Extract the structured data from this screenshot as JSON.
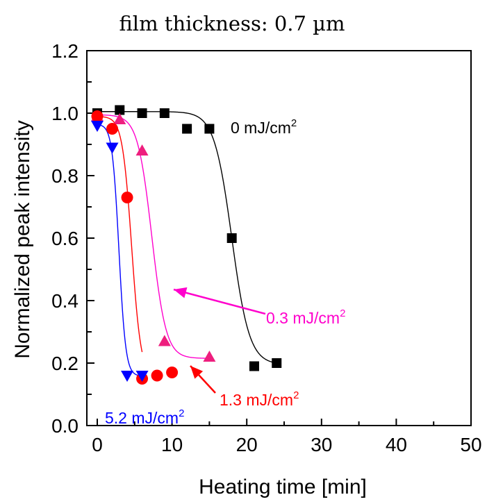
{
  "chart_data": {
    "type": "scatter",
    "title": "film thickness: 0.7 µm",
    "xlabel": "Heating time [min]",
    "ylabel": "Normalized peak intensity",
    "xlim": [
      0,
      50
    ],
    "ylim": [
      0.0,
      1.2
    ],
    "xticks": [
      "0",
      "10",
      "20",
      "30",
      "40",
      "50"
    ],
    "yticks": [
      "0.0",
      "0.2",
      "0.4",
      "0.6",
      "0.8",
      "1.0",
      "1.2"
    ],
    "grid": false,
    "series": [
      {
        "name": "0 mJ/cm2",
        "label_base": "0 mJ/cm",
        "label_sup": "2",
        "color": "#000000",
        "marker": "square",
        "x": [
          0,
          3,
          6,
          9,
          12,
          15,
          18,
          21,
          24
        ],
        "y": [
          1.0,
          1.01,
          1.0,
          1.0,
          0.95,
          0.95,
          0.6,
          0.19,
          0.2
        ]
      },
      {
        "name": "0.3 mJ/cm2",
        "label_base": "0.3 mJ/cm",
        "label_sup": "2",
        "color": "#ff00cc",
        "marker_color": "#ee1e7e",
        "marker": "triangle-up",
        "x": [
          0,
          3,
          6,
          9,
          15
        ],
        "y": [
          0.99,
          0.98,
          0.88,
          0.27,
          0.22
        ]
      },
      {
        "name": "1.3 mJ/cm2",
        "label_base": "1.3 mJ/cm",
        "label_sup": "2",
        "color": "#ff0000",
        "marker": "circle",
        "x": [
          0,
          2,
          4,
          6,
          8,
          10
        ],
        "y": [
          0.99,
          0.95,
          0.73,
          0.15,
          0.16,
          0.17
        ]
      },
      {
        "name": "5.2 mJ/cm2",
        "label_base": "5.2 mJ/cm",
        "label_sup": "2",
        "color": "#0000ff",
        "marker": "triangle-down",
        "x": [
          0,
          2,
          4,
          6
        ],
        "y": [
          0.96,
          0.89,
          0.16,
          0.16
        ]
      }
    ]
  }
}
